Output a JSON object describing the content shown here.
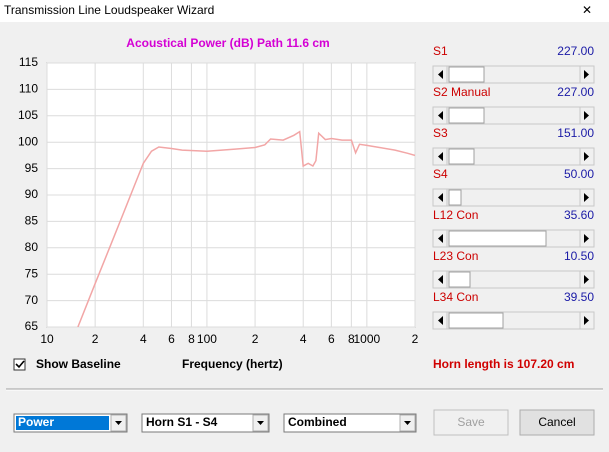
{
  "window": {
    "title": "Transmission Line Loudspeaker Wizard"
  },
  "chart_data": {
    "type": "line",
    "title": "Acoustical Power (dB)   Path 11.6 cm",
    "x_label": "Frequency (hertz)",
    "x": [
      15.6,
      20,
      25,
      30,
      35,
      40,
      45,
      50,
      60,
      70,
      100,
      150,
      200,
      230,
      250,
      300,
      350,
      380,
      400,
      430,
      460,
      480,
      500,
      550,
      600,
      700,
      800,
      850,
      900,
      1000,
      1200,
      1500,
      1800,
      2000
    ],
    "series": [
      {
        "color": "#f2a6a6",
        "values": [
          65,
          73.2,
          80.5,
          86.5,
          91.6,
          96,
          98.3,
          99.1,
          98.8,
          98.5,
          98.3,
          98.7,
          99,
          99.5,
          100.6,
          100.4,
          101.3,
          102,
          95.5,
          96,
          95.5,
          96.5,
          101.7,
          100.5,
          100.7,
          100.4,
          100.4,
          98,
          99.6,
          99.4,
          99,
          98.5,
          97.9,
          97.5
        ]
      }
    ],
    "xlim": [
      10,
      2000
    ],
    "ylim": [
      65,
      115
    ],
    "log_x": true,
    "grid": true,
    "xticks": [
      10,
      {
        "value": 20,
        "label": "2"
      },
      {
        "value": 40,
        "label": "4"
      },
      {
        "value": 60,
        "label": "6"
      },
      {
        "value": 80,
        "label": "8"
      },
      100,
      {
        "value": 200,
        "label": "2"
      },
      {
        "value": 400,
        "label": "4"
      },
      {
        "value": 600,
        "label": "6"
      },
      {
        "value": 800,
        "label": "8"
      },
      1000,
      {
        "value": 2000,
        "label": "2"
      }
    ],
    "yticks": [
      65,
      70,
      75,
      80,
      85,
      90,
      95,
      100,
      105,
      110,
      115
    ]
  },
  "sliders": [
    {
      "label": "S1",
      "value": "227.00"
    },
    {
      "label": "S2  Manual",
      "value": "227.00"
    },
    {
      "label": "S3",
      "value": "151.00"
    },
    {
      "label": "S4",
      "value": "50.00"
    },
    {
      "label": "L12  Con",
      "value": "35.60"
    },
    {
      "label": "L23  Con",
      "value": "10.50"
    },
    {
      "label": "L34  Con",
      "value": "39.50"
    }
  ],
  "baseline": {
    "label": "Show Baseline"
  },
  "horn_length": "Horn length is 107.20 cm",
  "dropdowns": [
    "Power",
    "Horn S1 - S4",
    "Combined"
  ],
  "buttons": {
    "save": "Save",
    "cancel": "Cancel"
  }
}
